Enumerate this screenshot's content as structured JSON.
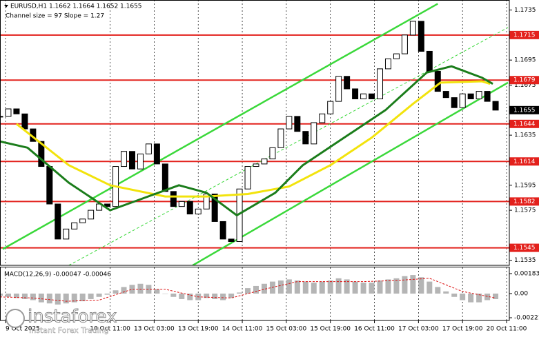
{
  "chart_data": {
    "type": "candlestick",
    "title": "EURUSD,H1  1.1662 1.1664 1.1652 1.1655",
    "subtitle": "Channel size = 97 Slope = 1.27",
    "logo": {
      "name": "instaforex",
      "tagline": "Instant Forex Trading"
    },
    "xlim": [
      0,
      185
    ],
    "ylim": [
      1.1531,
      1.1743
    ],
    "yticks": [
      1.1735,
      1.1695,
      1.1675,
      1.1635,
      1.1595,
      1.1575,
      1.1535
    ],
    "xticks": [
      {
        "value": 2,
        "label": "9 Oct 2025"
      },
      {
        "value": 40,
        "label": "10 Oct 11:00"
      },
      {
        "value": 56,
        "label": "13 Oct 03:00"
      },
      {
        "value": 72,
        "label": "13 Oct 19:00"
      },
      {
        "value": 88,
        "label": "14 Oct 11:00"
      },
      {
        "value": 104,
        "label": "15 Oct 03:00"
      },
      {
        "value": 120,
        "label": "15 Oct 19:00"
      },
      {
        "value": 136,
        "label": "16 Oct 11:00"
      },
      {
        "value": 152,
        "label": "17 Oct 03:00"
      },
      {
        "value": 168,
        "label": "17 Oct 19:00"
      },
      {
        "value": 184,
        "label": "20 Oct 11:00"
      }
    ],
    "levels": [
      1.1715,
      1.1679,
      1.1644,
      1.1614,
      1.1582,
      1.1545
    ],
    "level_color": "#e3211c",
    "current_price": 1.1655,
    "candles": {
      "x": [
        0,
        3,
        6,
        9,
        12,
        15,
        18,
        21,
        24,
        27,
        30,
        33,
        36,
        39,
        42,
        45,
        48,
        51,
        54,
        57,
        60,
        63,
        66,
        69,
        72,
        75,
        78,
        81,
        84,
        87,
        90,
        93,
        96,
        99,
        102,
        105,
        108,
        111,
        114,
        117,
        120,
        123,
        126,
        129,
        132,
        135,
        138,
        141,
        144,
        147,
        150,
        153,
        156,
        159,
        162,
        165,
        168,
        171,
        174,
        177,
        180
      ],
      "close": [
        1.165,
        1.1656,
        1.1652,
        1.164,
        1.163,
        1.161,
        1.158,
        1.1552,
        1.156,
        1.1565,
        1.1568,
        1.1575,
        1.158,
        1.1578,
        1.161,
        1.1622,
        1.1608,
        1.162,
        1.1628,
        1.1612,
        1.159,
        1.1578,
        1.1582,
        1.1572,
        1.1576,
        1.1588,
        1.1566,
        1.1552,
        1.155,
        1.1592,
        1.161,
        1.1612,
        1.1616,
        1.1625,
        1.164,
        1.165,
        1.1638,
        1.1628,
        1.1645,
        1.1652,
        1.1662,
        1.1682,
        1.1672,
        1.1664,
        1.1668,
        1.1664,
        1.1688,
        1.1696,
        1.17,
        1.1715,
        1.1726,
        1.1702,
        1.1686,
        1.167,
        1.1665,
        1.1657,
        1.1668,
        1.1664,
        1.167,
        1.1662,
        1.1655
      ]
    },
    "series": [
      {
        "color": "#f2e30c",
        "x": [
          6,
          25,
          40,
          60,
          75,
          90,
          105,
          120,
          135,
          150,
          160,
          175,
          178
        ],
        "values": [
          1.1644,
          1.1611,
          1.1595,
          1.1586,
          1.1586,
          1.1588,
          1.1594,
          1.1611,
          1.1633,
          1.166,
          1.1677,
          1.1678,
          1.1676
        ]
      },
      {
        "color": "#1b7d1b",
        "x": [
          0,
          10,
          25,
          40,
          50,
          65,
          75,
          86,
          100,
          110,
          125,
          140,
          155,
          164,
          175,
          179
        ],
        "values": [
          1.163,
          1.1625,
          1.1597,
          1.1575,
          1.1583,
          1.1595,
          1.1589,
          1.1571,
          1.1589,
          1.1611,
          1.1633,
          1.1655,
          1.1685,
          1.169,
          1.1681,
          1.1676
        ]
      }
    ],
    "channels": [
      {
        "color": "#3ad83a",
        "dashed": false,
        "x": [
          1,
          159
        ],
        "values": [
          1.1544,
          1.174
        ]
      },
      {
        "color": "#3ad83a",
        "dashed": false,
        "x": [
          70,
          184.5
        ],
        "values": [
          1.1531,
          1.1677
        ]
      },
      {
        "color": "#3ad83a",
        "dashed": true,
        "x": [
          25,
          184.5
        ],
        "values": [
          1.1531,
          1.1721
        ]
      }
    ],
    "macd": {
      "title": "MACD(12,26,9) -0.00047 -0.00046",
      "ylim": [
        -0.00246,
        0.0024
      ],
      "yticks": [
        0.00183,
        {
          "value": 0,
          "label": "0.00"
        },
        -0.00221
      ],
      "histogram": [
        -0.0002,
        -0.0003,
        -0.0004,
        -0.0005,
        -0.0006,
        -0.0008,
        -0.0009,
        -0.001,
        -0.0009,
        -0.0008,
        -0.0007,
        -0.0005,
        -0.0003,
        -0.0001,
        0.0003,
        0.0006,
        0.0008,
        0.0009,
        0.0008,
        0.0004,
        0.0,
        -0.0003,
        -0.0005,
        -0.0006,
        -0.0006,
        -0.0004,
        -0.0005,
        -0.0006,
        -0.0004,
        0.0001,
        0.0005,
        0.0007,
        0.0009,
        0.0011,
        0.0012,
        0.0013,
        0.0012,
        0.0011,
        0.001,
        0.0011,
        0.0012,
        0.0014,
        0.0013,
        0.0011,
        0.001,
        0.001,
        0.0012,
        0.0013,
        0.0014,
        0.0016,
        0.0017,
        0.0015,
        0.0011,
        0.0006,
        0.0002,
        -0.0003,
        -0.0006,
        -0.0008,
        -0.0008,
        -0.0006,
        -0.0005
      ],
      "signal": {
        "color": "#dd1111",
        "x": [
          0,
          12,
          24,
          36,
          48,
          60,
          72,
          84,
          96,
          108,
          120,
          132,
          144,
          156,
          168,
          180
        ],
        "values": [
          -0.0003,
          -0.0004,
          -0.0007,
          -0.0006,
          0.0004,
          0.0004,
          -0.0003,
          -0.0004,
          0.0004,
          0.0011,
          0.0011,
          0.0011,
          0.0012,
          0.0014,
          0.0002,
          -0.0004
        ]
      }
    }
  }
}
